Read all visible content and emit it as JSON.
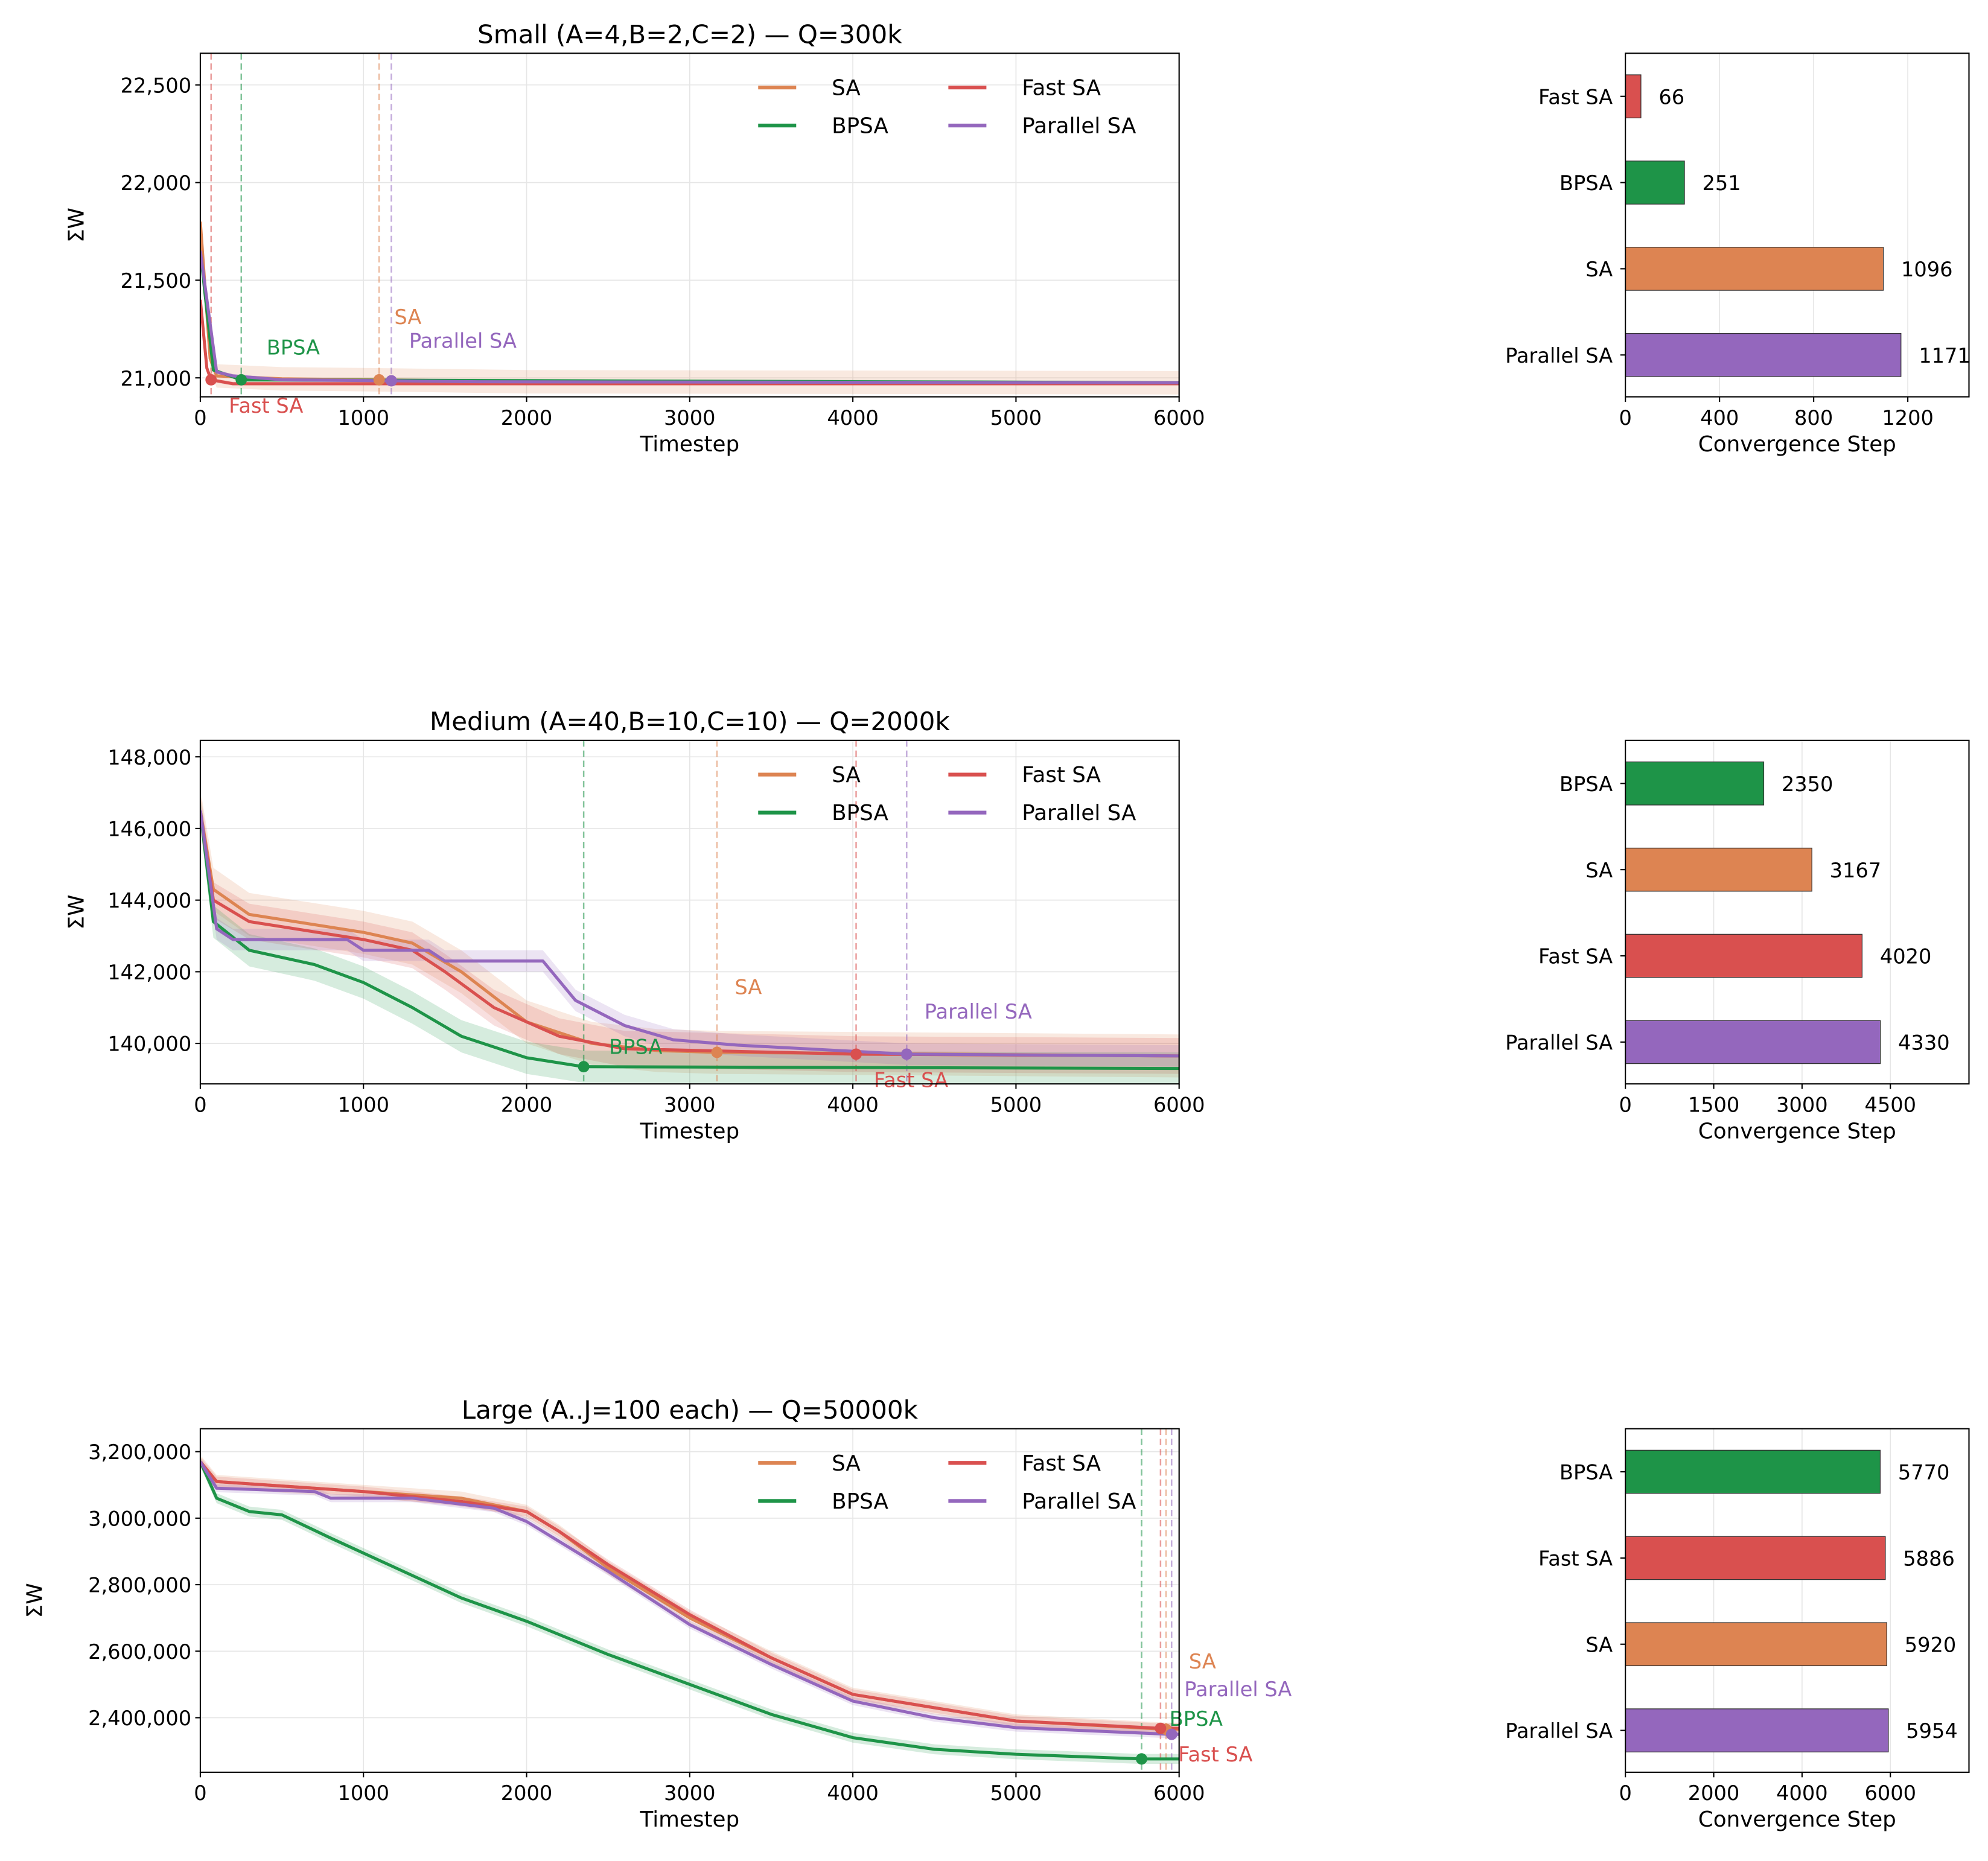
{
  "colors": {
    "SA": "#dd8452",
    "Fast SA": "#d9504f",
    "BPSA": "#1e9448",
    "Parallel SA": "#9467bd"
  },
  "chart_data": [
    {
      "type": "line",
      "title": "Small (A=4,B=2,C=2) — Q=300k",
      "xlabel": "Timestep",
      "ylabel": "ΣW",
      "xlim": [
        0,
        6000
      ],
      "ylim": [
        20903,
        22662
      ],
      "xticks": [
        0,
        1000,
        2000,
        3000,
        4000,
        5000,
        6000
      ],
      "yticks": [
        21000,
        21500,
        22000,
        22500
      ],
      "grid": true,
      "legend_placement": "top-right",
      "legend": [
        "SA",
        "Fast SA",
        "BPSA",
        "Parallel SA"
      ],
      "series": [
        {
          "name": "SA",
          "spread": 60,
          "convergence": 1096,
          "points": [
            [
              0,
              21800
            ],
            [
              60,
              21100
            ],
            [
              100,
              21010
            ],
            [
              500,
              20995
            ],
            [
              1096,
              20990
            ],
            [
              2000,
              20980
            ],
            [
              6000,
              20975
            ]
          ]
        },
        {
          "name": "Fast SA",
          "spread": 10,
          "convergence": 66,
          "points": [
            [
              0,
              21400
            ],
            [
              40,
              21050
            ],
            [
              66,
              20990
            ],
            [
              200,
              20970
            ],
            [
              6000,
              20970
            ]
          ]
        },
        {
          "name": "BPSA",
          "spread": 10,
          "convergence": 251,
          "points": [
            [
              0,
              21650
            ],
            [
              80,
              21040
            ],
            [
              251,
              20990
            ],
            [
              6000,
              20975
            ]
          ]
        },
        {
          "name": "Parallel SA",
          "spread": 10,
          "convergence": 1171,
          "points": [
            [
              0,
              21650
            ],
            [
              100,
              21030
            ],
            [
              200,
              21010
            ],
            [
              500,
              20990
            ],
            [
              1171,
              20985
            ],
            [
              1700,
              20980
            ],
            [
              6000,
              20975
            ]
          ]
        }
      ]
    },
    {
      "type": "bar",
      "xlabel": "Convergence Step",
      "xlim": [
        0,
        1460
      ],
      "xticks": [
        0,
        400,
        800,
        1200
      ],
      "categories": [
        "Fast SA",
        "BPSA",
        "SA",
        "Parallel SA"
      ],
      "values": [
        66,
        251,
        1096,
        1171
      ]
    },
    {
      "type": "line",
      "title": "Medium (A=40,B=10,C=10) — Q=2000k",
      "xlabel": "Timestep",
      "ylabel": "ΣW",
      "xlim": [
        0,
        6000
      ],
      "ylim": [
        138870,
        148460
      ],
      "xticks": [
        0,
        1000,
        2000,
        3000,
        4000,
        5000,
        6000
      ],
      "yticks": [
        140000,
        142000,
        144000,
        146000,
        148000
      ],
      "grid": true,
      "legend_placement": "top-right",
      "legend": [
        "SA",
        "Fast SA",
        "BPSA",
        "Parallel SA"
      ],
      "series": [
        {
          "name": "SA",
          "spread": 600,
          "convergence": 3167,
          "points": [
            [
              0,
              146500
            ],
            [
              80,
              144300
            ],
            [
              300,
              143600
            ],
            [
              1000,
              143100
            ],
            [
              1300,
              142800
            ],
            [
              1600,
              142000
            ],
            [
              2000,
              140600
            ],
            [
              2400,
              140000
            ],
            [
              2800,
              139800
            ],
            [
              3167,
              139750
            ],
            [
              6000,
              139650
            ]
          ]
        },
        {
          "name": "Fast SA",
          "spread": 500,
          "convergence": 4020,
          "points": [
            [
              0,
              146500
            ],
            [
              80,
              144000
            ],
            [
              300,
              143400
            ],
            [
              1000,
              142900
            ],
            [
              1300,
              142600
            ],
            [
              1500,
              142000
            ],
            [
              1800,
              141000
            ],
            [
              2200,
              140200
            ],
            [
              2600,
              139850
            ],
            [
              4020,
              139700
            ],
            [
              6000,
              139650
            ]
          ]
        },
        {
          "name": "BPSA",
          "spread": 450,
          "convergence": 2350,
          "points": [
            [
              0,
              146500
            ],
            [
              80,
              143400
            ],
            [
              300,
              142600
            ],
            [
              700,
              142200
            ],
            [
              1000,
              141700
            ],
            [
              1300,
              141000
            ],
            [
              1600,
              140200
            ],
            [
              2000,
              139600
            ],
            [
              2350,
              139350
            ],
            [
              6000,
              139300
            ]
          ]
        },
        {
          "name": "Parallel SA",
          "spread": 300,
          "convergence": 4330,
          "points": [
            [
              0,
              146500
            ],
            [
              100,
              143200
            ],
            [
              200,
              142900
            ],
            [
              900,
              142900
            ],
            [
              1000,
              142600
            ],
            [
              1400,
              142600
            ],
            [
              1500,
              142300
            ],
            [
              2100,
              142300
            ],
            [
              2300,
              141200
            ],
            [
              2600,
              140500
            ],
            [
              2900,
              140100
            ],
            [
              3300,
              139950
            ],
            [
              4330,
              139700
            ],
            [
              6000,
              139650
            ]
          ]
        }
      ]
    },
    {
      "type": "bar",
      "xlabel": "Convergence Step",
      "xlim": [
        0,
        5835
      ],
      "xticks": [
        0,
        1500,
        3000,
        4500
      ],
      "categories": [
        "BPSA",
        "SA",
        "Fast SA",
        "Parallel SA"
      ],
      "values": [
        2350,
        3167,
        4020,
        4330
      ]
    },
    {
      "type": "line",
      "title": "Large (A..J=100 each) — Q=50000k",
      "xlabel": "Timestep",
      "ylabel": "ΣW",
      "xlim": [
        0,
        6000
      ],
      "ylim": [
        2236000,
        3269000
      ],
      "xticks": [
        0,
        1000,
        2000,
        3000,
        4000,
        5000,
        6000
      ],
      "yticks": [
        2400000,
        2600000,
        2800000,
        3000000,
        3200000
      ],
      "grid": true,
      "legend_placement": "top-right",
      "legend": [
        "SA",
        "Fast SA",
        "BPSA",
        "Parallel SA"
      ],
      "series": [
        {
          "name": "SA",
          "spread": 20000,
          "convergence": 5920,
          "points": [
            [
              0,
              3170000
            ],
            [
              100,
              3110000
            ],
            [
              1000,
              3080000
            ],
            [
              1600,
              3060000
            ],
            [
              2000,
              3020000
            ],
            [
              2200,
              2960000
            ],
            [
              2500,
              2850000
            ],
            [
              3000,
              2700000
            ],
            [
              3500,
              2580000
            ],
            [
              4000,
              2470000
            ],
            [
              5000,
              2390000
            ],
            [
              5920,
              2365000
            ],
            [
              6000,
              2365000
            ]
          ]
        },
        {
          "name": "Fast SA",
          "spread": 15000,
          "convergence": 5886,
          "points": [
            [
              0,
              3170000
            ],
            [
              100,
              3110000
            ],
            [
              1000,
              3080000
            ],
            [
              1600,
              3050000
            ],
            [
              2000,
              3020000
            ],
            [
              2200,
              2960000
            ],
            [
              2500,
              2860000
            ],
            [
              3000,
              2710000
            ],
            [
              3500,
              2580000
            ],
            [
              4000,
              2470000
            ],
            [
              5000,
              2390000
            ],
            [
              5886,
              2368000
            ],
            [
              6000,
              2368000
            ]
          ]
        },
        {
          "name": "BPSA",
          "spread": 15000,
          "convergence": 5770,
          "points": [
            [
              0,
              3170000
            ],
            [
              100,
              3060000
            ],
            [
              300,
              3020000
            ],
            [
              500,
              3010000
            ],
            [
              800,
              2940000
            ],
            [
              1200,
              2850000
            ],
            [
              1600,
              2760000
            ],
            [
              2000,
              2690000
            ],
            [
              2500,
              2590000
            ],
            [
              3000,
              2500000
            ],
            [
              3500,
              2410000
            ],
            [
              4000,
              2340000
            ],
            [
              4500,
              2305000
            ],
            [
              5000,
              2290000
            ],
            [
              5770,
              2276000
            ],
            [
              6000,
              2276000
            ]
          ]
        },
        {
          "name": "Parallel SA",
          "spread": 12000,
          "convergence": 5954,
          "points": [
            [
              0,
              3170000
            ],
            [
              100,
              3090000
            ],
            [
              700,
              3080000
            ],
            [
              800,
              3060000
            ],
            [
              1300,
              3060000
            ],
            [
              1800,
              3030000
            ],
            [
              2000,
              2990000
            ],
            [
              2200,
              2930000
            ],
            [
              2500,
              2840000
            ],
            [
              3000,
              2680000
            ],
            [
              3500,
              2560000
            ],
            [
              4000,
              2450000
            ],
            [
              4500,
              2400000
            ],
            [
              5000,
              2370000
            ],
            [
              5954,
              2350000
            ],
            [
              6000,
              2350000
            ]
          ]
        }
      ]
    },
    {
      "type": "bar",
      "xlabel": "Convergence Step",
      "xlim": [
        0,
        7780
      ],
      "xticks": [
        0,
        2000,
        4000,
        6000
      ],
      "categories": [
        "BPSA",
        "Fast SA",
        "SA",
        "Parallel SA"
      ],
      "values": [
        5770,
        5886,
        5920,
        5954
      ]
    }
  ]
}
